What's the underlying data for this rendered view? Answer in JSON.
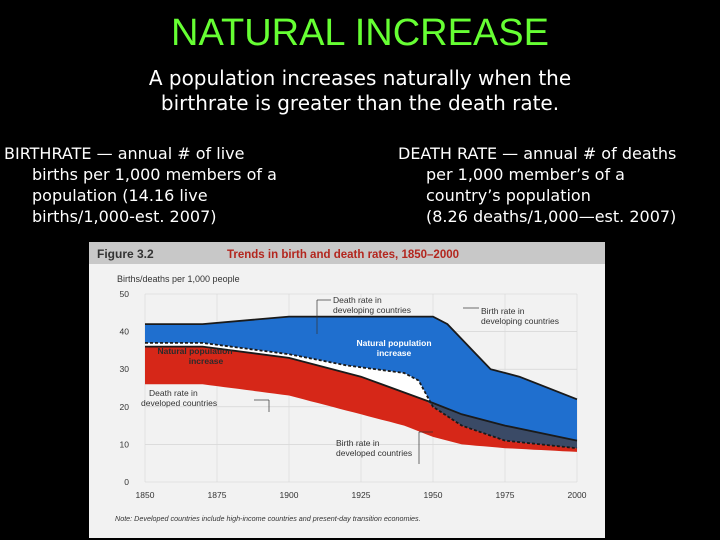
{
  "slide": {
    "title": "NATURAL INCREASE",
    "subtitle_line1": "A population increases naturally when the",
    "subtitle_line2": "birthrate is greater than the death rate."
  },
  "definitions": {
    "birth": {
      "term": "BIRTHRATE",
      "line1": " — annual # of live",
      "line2": "births per 1,000 members of a",
      "line3": "population (14.16 live",
      "line4": "births/1,000-est. 2007)"
    },
    "death": {
      "term": "DEATH RATE",
      "line1": " — annual # of deaths",
      "line2": "per 1,000 member’s of a",
      "line3": "country’s population",
      "line4": "(8.26 deaths/1,000—est. 2007)"
    }
  },
  "figure": {
    "label": "Figure 3.2",
    "note": "Note: Developed countries include high-income countries and present-day transition economies."
  },
  "chart_data": {
    "type": "area",
    "title": "Trends in birth and death rates, 1850–2000",
    "ylabel": "Births/deaths per 1,000 people",
    "xlabel": "",
    "x_ticks": [
      1850,
      1875,
      1900,
      1925,
      1950,
      1975,
      2000
    ],
    "y_ticks": [
      0,
      10,
      20,
      30,
      40,
      50
    ],
    "xlim": [
      1850,
      2000
    ],
    "ylim": [
      0,
      50
    ],
    "series": [
      {
        "name": "Birth rate in developing countries",
        "color": "#1f6fcf",
        "x": [
          1850,
          1870,
          1900,
          1950,
          1955,
          1965,
          1970,
          1980,
          2000
        ],
        "y": [
          42,
          42,
          44,
          44,
          42,
          34,
          30,
          28,
          22
        ]
      },
      {
        "name": "Death rate in developing countries",
        "color": "#ffffff",
        "x": [
          1850,
          1870,
          1900,
          1920,
          1940,
          1945,
          1950,
          1960,
          1975,
          2000
        ],
        "y": [
          37,
          37,
          34,
          31,
          29,
          27,
          20,
          15,
          11,
          9
        ]
      },
      {
        "name": "Birth rate in developed countries",
        "color": "#3a4a66",
        "x": [
          1850,
          1870,
          1900,
          1925,
          1950,
          1960,
          1975,
          2000
        ],
        "y": [
          36,
          36,
          33,
          28,
          21,
          18,
          15,
          11
        ]
      },
      {
        "name": "Death rate in developed countries",
        "color": "#d62718",
        "x": [
          1850,
          1870,
          1900,
          1925,
          1940,
          1950,
          1960,
          1975,
          2000
        ],
        "y": [
          26,
          26,
          23,
          18,
          15,
          12,
          10,
          9,
          8
        ]
      }
    ],
    "annotations": [
      {
        "text_line1": "Death rate in",
        "text_line2": "developing countries"
      },
      {
        "text_line1": "Birth rate in",
        "text_line2": "developing countries"
      },
      {
        "text_line1": "Natural population",
        "text_line2": "increase"
      },
      {
        "text_line1": "Natural population",
        "text_line2": "increase"
      },
      {
        "text_line1": "Death rate in",
        "text_line2": "developed countries"
      },
      {
        "text_line1": "Birth rate in",
        "text_line2": "developed countries"
      }
    ]
  }
}
